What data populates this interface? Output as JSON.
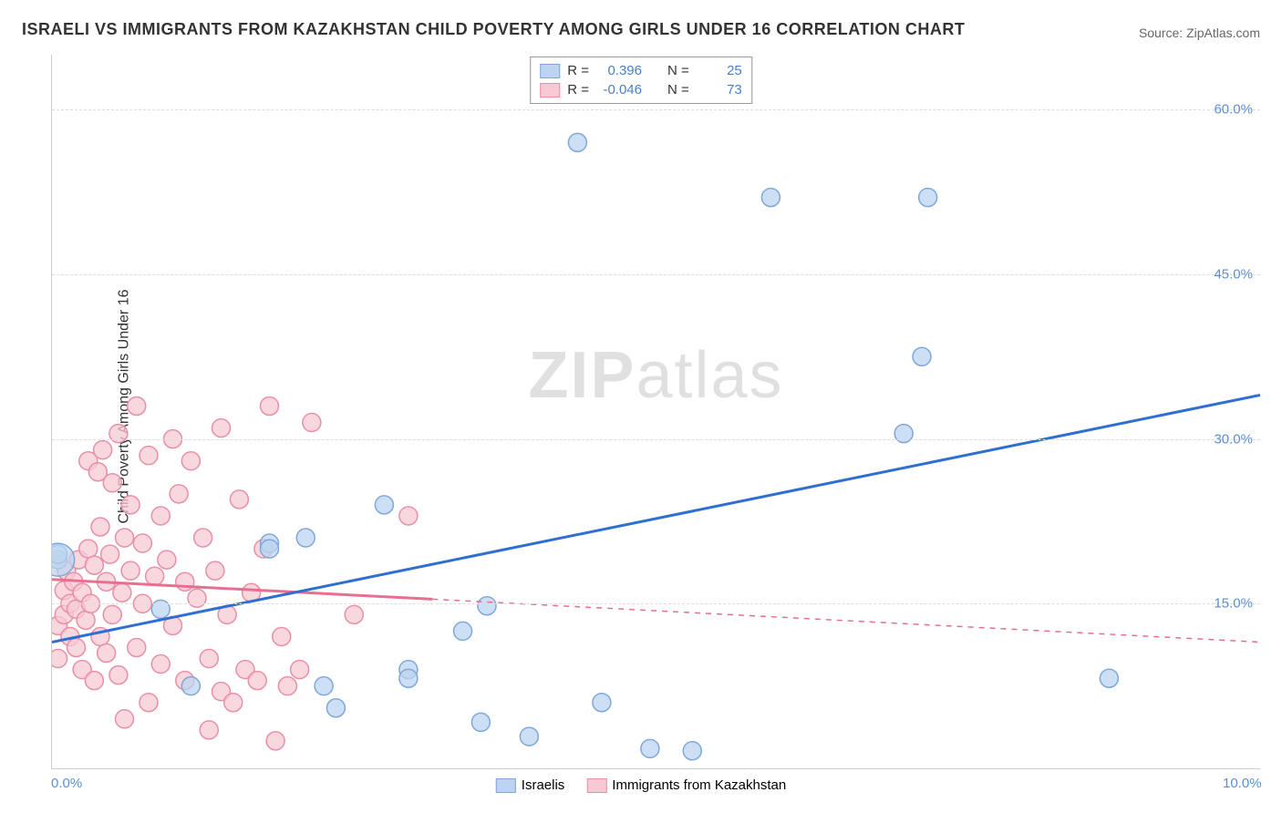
{
  "title": "ISRAELI VS IMMIGRANTS FROM KAZAKHSTAN CHILD POVERTY AMONG GIRLS UNDER 16 CORRELATION CHART",
  "source": "Source: ZipAtlas.com",
  "ylabel": "Child Poverty Among Girls Under 16",
  "watermark_bold": "ZIP",
  "watermark_light": "atlas",
  "chart": {
    "type": "scatter",
    "background_color": "#ffffff",
    "grid_color": "#dddddd",
    "axis_color": "#cccccc",
    "tick_label_color": "#5a8fd6",
    "tick_fontsize": 15,
    "title_fontsize": 18,
    "ylabel_fontsize": 16,
    "xlim": [
      0,
      10
    ],
    "ylim": [
      0,
      65
    ],
    "y_ticks": [
      {
        "value": 15,
        "label": "15.0%"
      },
      {
        "value": 30,
        "label": "30.0%"
      },
      {
        "value": 45,
        "label": "45.0%"
      },
      {
        "value": 60,
        "label": "60.0%"
      }
    ],
    "x_ticks": [
      {
        "value": 0,
        "label": "0.0%"
      },
      {
        "value": 10,
        "label": "10.0%"
      }
    ],
    "series": [
      {
        "name": "Israelis",
        "label": "Israelis",
        "fill_color": "#bcd4f0",
        "stroke_color": "#7fa8d9",
        "line_color": "#2e6fd1",
        "marker_radius": 10,
        "marker_opacity": 0.75,
        "line_width": 3,
        "trend_solid_end_x": 10,
        "trend": {
          "x1": 0,
          "y1": 11.5,
          "x2": 10,
          "y2": 34
        },
        "stats": {
          "R_label": "R =",
          "R": "0.396",
          "N_label": "N =",
          "N": "25"
        },
        "points": [
          [
            0.05,
            19
          ],
          [
            0.05,
            19.5
          ],
          [
            0.9,
            14.5
          ],
          [
            1.15,
            7.5
          ],
          [
            1.8,
            20.5
          ],
          [
            1.8,
            20
          ],
          [
            2.1,
            21
          ],
          [
            2.25,
            7.5
          ],
          [
            2.35,
            5.5
          ],
          [
            2.75,
            24
          ],
          [
            2.95,
            9
          ],
          [
            2.95,
            8.2
          ],
          [
            3.4,
            12.5
          ],
          [
            3.55,
            4.2
          ],
          [
            3.6,
            14.8
          ],
          [
            3.95,
            2.9
          ],
          [
            4.55,
            6
          ],
          [
            4.95,
            1.8
          ],
          [
            4.35,
            57
          ],
          [
            5.3,
            1.6
          ],
          [
            5.95,
            52
          ],
          [
            7.05,
            30.5
          ],
          [
            7.2,
            37.5
          ],
          [
            7.25,
            52
          ],
          [
            8.75,
            8.2
          ]
        ]
      },
      {
        "name": "Immigrants from Kazakhstan",
        "label": "Immigrants from Kazakhstan",
        "fill_color": "#f7c9d4",
        "stroke_color": "#e890a6",
        "line_color": "#e86f8f",
        "marker_radius": 10,
        "marker_opacity": 0.75,
        "line_width": 3,
        "trend_solid_end_x": 3.15,
        "trend": {
          "x1": 0,
          "y1": 17.2,
          "x2": 10,
          "y2": 11.5
        },
        "stats": {
          "R_label": "R =",
          "R": "-0.046",
          "N_label": "N =",
          "N": "73"
        },
        "points": [
          [
            0.05,
            10
          ],
          [
            0.05,
            13
          ],
          [
            0.1,
            14
          ],
          [
            0.1,
            16.2
          ],
          [
            0.12,
            18
          ],
          [
            0.15,
            12
          ],
          [
            0.15,
            15
          ],
          [
            0.18,
            17
          ],
          [
            0.2,
            11
          ],
          [
            0.2,
            14.5
          ],
          [
            0.22,
            19
          ],
          [
            0.25,
            9
          ],
          [
            0.25,
            16
          ],
          [
            0.28,
            13.5
          ],
          [
            0.3,
            20
          ],
          [
            0.3,
            28
          ],
          [
            0.32,
            15
          ],
          [
            0.35,
            8
          ],
          [
            0.35,
            18.5
          ],
          [
            0.38,
            27
          ],
          [
            0.4,
            12
          ],
          [
            0.4,
            22
          ],
          [
            0.42,
            29
          ],
          [
            0.45,
            10.5
          ],
          [
            0.45,
            17
          ],
          [
            0.48,
            19.5
          ],
          [
            0.5,
            26
          ],
          [
            0.5,
            14
          ],
          [
            0.55,
            30.5
          ],
          [
            0.55,
            8.5
          ],
          [
            0.58,
            16
          ],
          [
            0.6,
            21
          ],
          [
            0.6,
            4.5
          ],
          [
            0.65,
            18
          ],
          [
            0.65,
            24
          ],
          [
            0.7,
            33
          ],
          [
            0.7,
            11
          ],
          [
            0.75,
            15
          ],
          [
            0.75,
            20.5
          ],
          [
            0.8,
            28.5
          ],
          [
            0.8,
            6
          ],
          [
            0.85,
            17.5
          ],
          [
            0.9,
            23
          ],
          [
            0.9,
            9.5
          ],
          [
            0.95,
            19
          ],
          [
            1.0,
            30
          ],
          [
            1.0,
            13
          ],
          [
            1.05,
            25
          ],
          [
            1.1,
            8
          ],
          [
            1.1,
            17
          ],
          [
            1.15,
            28
          ],
          [
            1.2,
            15.5
          ],
          [
            1.25,
            21
          ],
          [
            1.3,
            3.5
          ],
          [
            1.3,
            10
          ],
          [
            1.35,
            18
          ],
          [
            1.4,
            7
          ],
          [
            1.4,
            31
          ],
          [
            1.45,
            14
          ],
          [
            1.5,
            6
          ],
          [
            1.55,
            24.5
          ],
          [
            1.6,
            9
          ],
          [
            1.65,
            16
          ],
          [
            1.7,
            8
          ],
          [
            1.75,
            20
          ],
          [
            1.8,
            33
          ],
          [
            1.85,
            2.5
          ],
          [
            1.9,
            12
          ],
          [
            1.95,
            7.5
          ],
          [
            2.05,
            9
          ],
          [
            2.15,
            31.5
          ],
          [
            2.95,
            23
          ],
          [
            2.5,
            14
          ]
        ]
      }
    ]
  }
}
